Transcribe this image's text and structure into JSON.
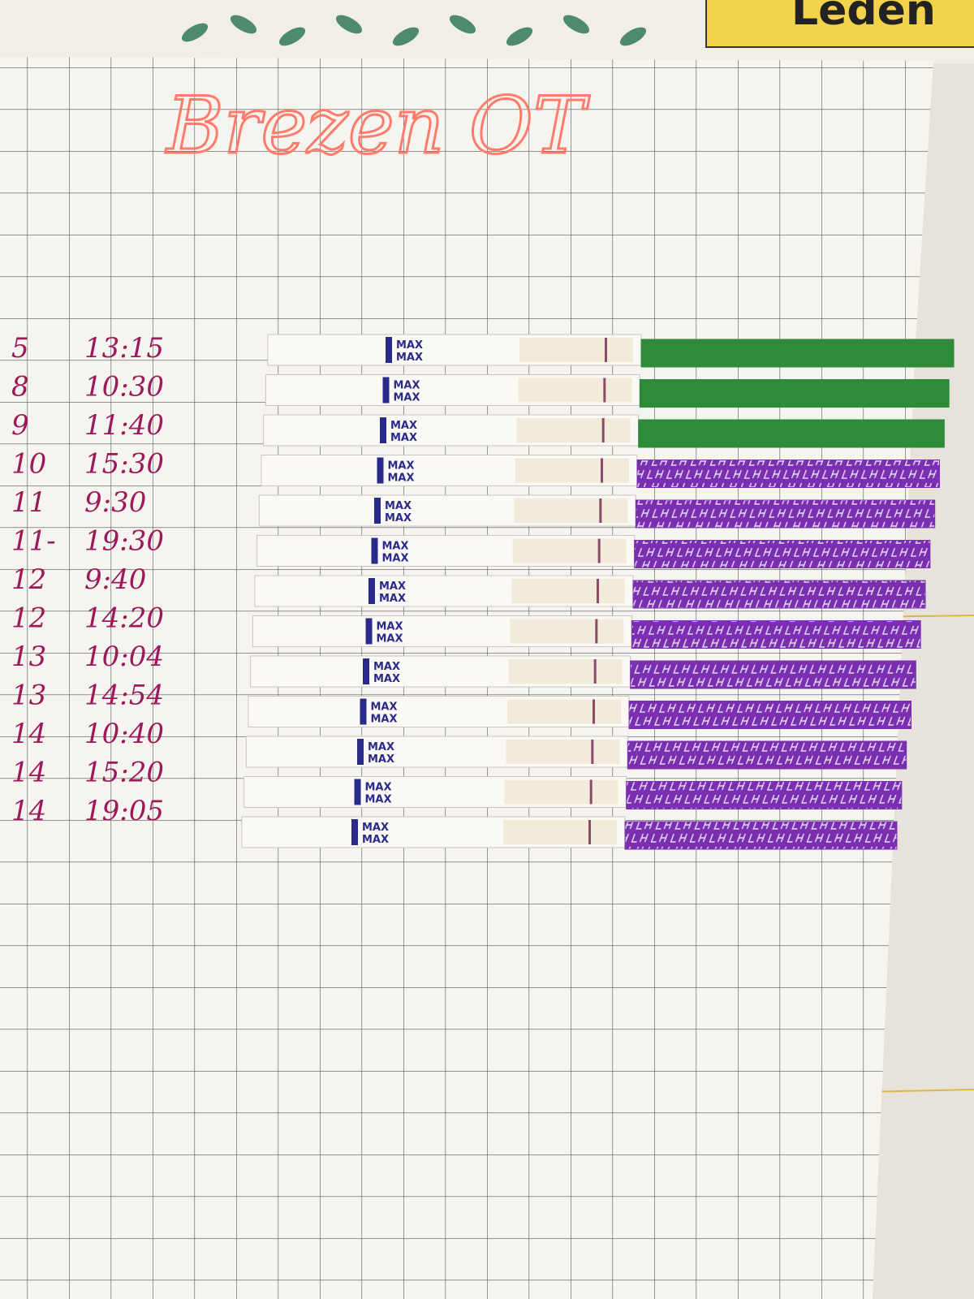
{
  "header": {
    "title": "Brezen OT",
    "tag": "Leden"
  },
  "strip_label": "MAX",
  "entries": [
    {
      "day": "5",
      "time": "13:15",
      "handle_color": "#2e8b3a"
    },
    {
      "day": "8",
      "time": "10:30",
      "handle_color": "#2e8b3a"
    },
    {
      "day": "9",
      "time": "11:40",
      "handle_color": "#2e8b3a"
    },
    {
      "day": "10",
      "time": "15:30",
      "handle_color": "#7a2fb0"
    },
    {
      "day": "11",
      "time": "9:30",
      "handle_color": "#7a2fb0"
    },
    {
      "day": "11-",
      "time": "19:30",
      "handle_color": "#7a2fb0"
    },
    {
      "day": "12",
      "time": "9:40",
      "handle_color": "#7a2fb0"
    },
    {
      "day": "12",
      "time": "14:20",
      "handle_color": "#7a2fb0"
    },
    {
      "day": "13",
      "time": "10:04",
      "handle_color": "#7a2fb0"
    },
    {
      "day": "13",
      "time": "14:54",
      "handle_color": "#7a2fb0"
    },
    {
      "day": "14",
      "time": "10:40",
      "handle_color": "#7a2fb0"
    },
    {
      "day": "14",
      "time": "15:20",
      "handle_color": "#7a2fb0"
    },
    {
      "day": "14",
      "time": "19:05",
      "handle_color": "#7a2fb0"
    }
  ]
}
